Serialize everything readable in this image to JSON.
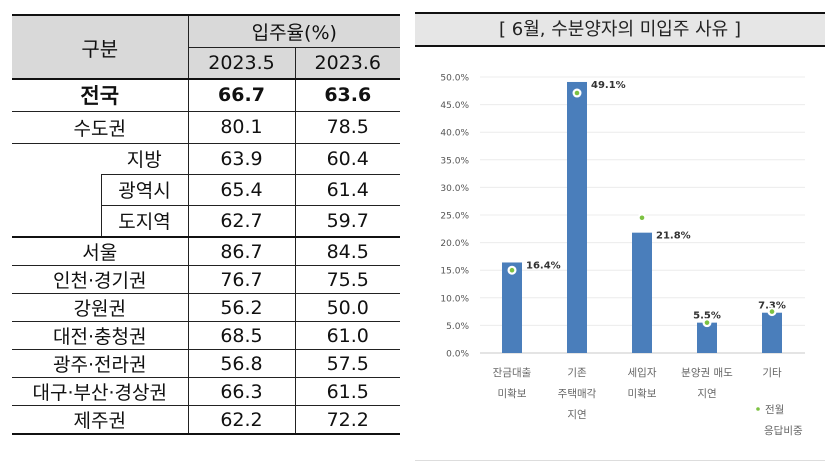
{
  "table": {
    "header_group": "구분",
    "header_metric": "입주율(%)",
    "periods": [
      "2023.5",
      "2023.6"
    ],
    "rows": [
      {
        "label": "전국",
        "v1": "66.7",
        "v2": "63.6"
      },
      {
        "label": "수도권",
        "v1": "80.1",
        "v2": "78.5"
      },
      {
        "label": "지방",
        "v1": "63.9",
        "v2": "60.4"
      },
      {
        "label": "광역시",
        "v1": "65.4",
        "v2": "61.4"
      },
      {
        "label": "도지역",
        "v1": "62.7",
        "v2": "59.7"
      },
      {
        "label": "서울",
        "v1": "86.7",
        "v2": "84.5"
      },
      {
        "label": "인천·경기권",
        "v1": "76.7",
        "v2": "75.5"
      },
      {
        "label": "강원권",
        "v1": "56.2",
        "v2": "50.0"
      },
      {
        "label": "대전·충청권",
        "v1": "68.5",
        "v2": "61.0"
      },
      {
        "label": "광주·전라권",
        "v1": "56.8",
        "v2": "57.5"
      },
      {
        "label": "대구·부산·경상권",
        "v1": "66.3",
        "v2": "61.5"
      },
      {
        "label": "제주권",
        "v1": "62.2",
        "v2": "72.2"
      }
    ]
  },
  "chart_data": {
    "type": "bar",
    "title": "[ 6월, 수분양자의 미입주 사유 ]",
    "categories": [
      [
        "잔금대출",
        "미확보"
      ],
      [
        "기존",
        "주택매각",
        "지연"
      ],
      [
        "세입자",
        "미확보"
      ],
      [
        "분양권 매도",
        "지연"
      ],
      [
        "기타"
      ]
    ],
    "series": [
      {
        "name": "6월",
        "values": [
          16.4,
          49.1,
          21.8,
          5.5,
          7.3
        ],
        "labels": [
          "16.4%",
          "49.1%",
          "21.8%",
          "5.5%",
          "7.3%"
        ],
        "color": "#4a7ebb"
      },
      {
        "name": "전월 응답비중",
        "values": [
          15.0,
          47.1,
          24.5,
          5.5,
          7.5
        ],
        "color": "#7dc242"
      }
    ],
    "legend": [
      "전월",
      "응답비중"
    ],
    "ylim": [
      0,
      50
    ],
    "yticks": [
      "0.0%",
      "5.0%",
      "10.0%",
      "15.0%",
      "20.0%",
      "25.0%",
      "30.0%",
      "35.0%",
      "40.0%",
      "45.0%",
      "50.0%"
    ],
    "grid": true
  }
}
